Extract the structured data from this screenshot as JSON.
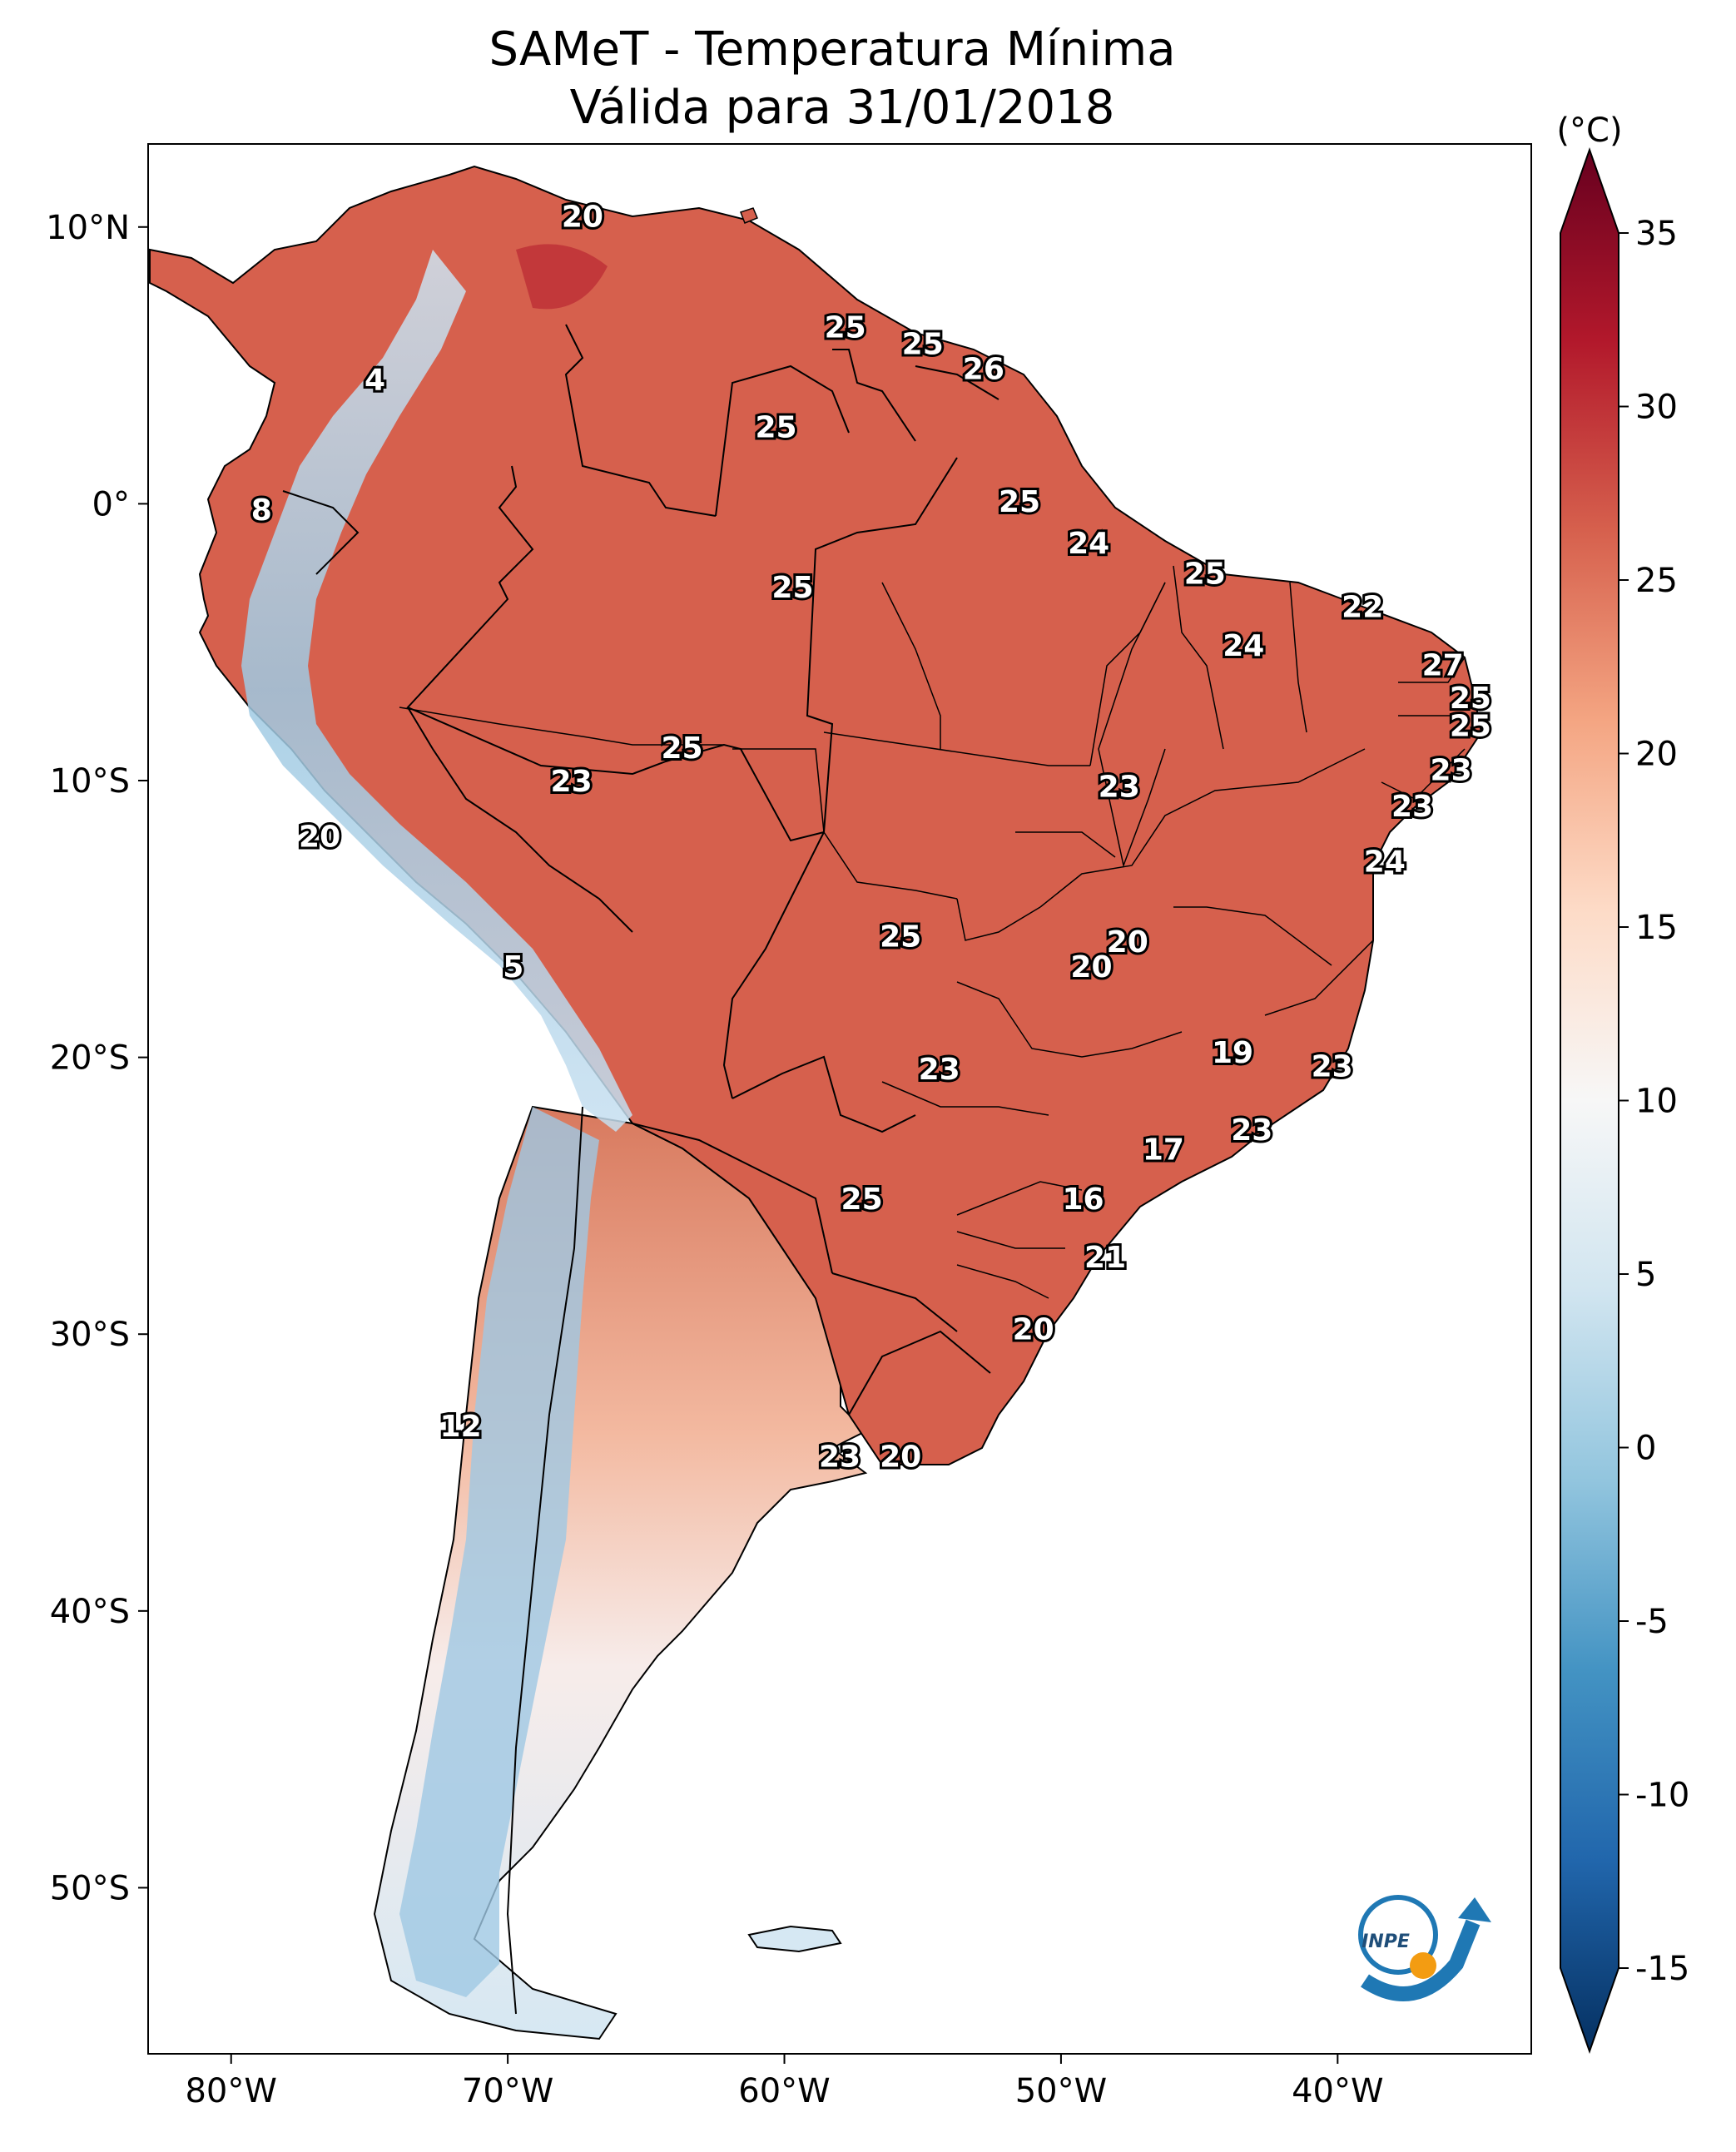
{
  "title_line1": "SAMeT - Temperatura Mínima",
  "title_line2": "Válida para 31/01/2018",
  "unit": "(°C)",
  "lat_ticks": [
    "10°N",
    "0°",
    "10°S",
    "20°S",
    "30°S",
    "40°S",
    "50°S"
  ],
  "lon_ticks": [
    "80°W",
    "70°W",
    "60°W",
    "50°W",
    "40°W"
  ],
  "colorbar": {
    "ticks": [
      "35",
      "30",
      "25",
      "20",
      "15",
      "10",
      "5",
      "0",
      "-5",
      "-10",
      "-15"
    ],
    "min": -15,
    "max": 35,
    "colors": [
      "#053061",
      "#2166ac",
      "#4393c3",
      "#92c5de",
      "#d1e5f0",
      "#f7f7f7",
      "#fddbc7",
      "#f4a582",
      "#d6604d",
      "#b2182b",
      "#67001f"
    ]
  },
  "logo_text": "INPE",
  "map_labels": [
    {
      "text": "20",
      "lon": -67.3,
      "lat": 10.4
    },
    {
      "text": "25",
      "lon": -57.8,
      "lat": 6.4
    },
    {
      "text": "25",
      "lon": -55.0,
      "lat": 5.8
    },
    {
      "text": "26",
      "lon": -52.8,
      "lat": 4.9
    },
    {
      "text": "4",
      "lon": -74.8,
      "lat": 4.5
    },
    {
      "text": "25",
      "lon": -60.3,
      "lat": 2.8
    },
    {
      "text": "25",
      "lon": -51.5,
      "lat": 0.1
    },
    {
      "text": "8",
      "lon": -78.9,
      "lat": -0.2
    },
    {
      "text": "24",
      "lon": -49.0,
      "lat": -1.4
    },
    {
      "text": "25",
      "lon": -44.8,
      "lat": -2.5
    },
    {
      "text": "25",
      "lon": -59.7,
      "lat": -3.0
    },
    {
      "text": "22",
      "lon": -39.1,
      "lat": -3.7
    },
    {
      "text": "24",
      "lon": -43.4,
      "lat": -5.1
    },
    {
      "text": "27",
      "lon": -36.2,
      "lat": -5.8
    },
    {
      "text": "25",
      "lon": -35.2,
      "lat": -7.0
    },
    {
      "text": "25",
      "lon": -35.2,
      "lat": -8.0
    },
    {
      "text": "25",
      "lon": -63.7,
      "lat": -8.8
    },
    {
      "text": "23",
      "lon": -35.9,
      "lat": -9.6
    },
    {
      "text": "23",
      "lon": -67.7,
      "lat": -10.0
    },
    {
      "text": "23",
      "lon": -47.9,
      "lat": -10.2
    },
    {
      "text": "23",
      "lon": -37.3,
      "lat": -10.9
    },
    {
      "text": "20",
      "lon": -76.8,
      "lat": -12.0
    },
    {
      "text": "24",
      "lon": -38.3,
      "lat": -12.9
    },
    {
      "text": "25",
      "lon": -55.8,
      "lat": -15.6
    },
    {
      "text": "20",
      "lon": -47.6,
      "lat": -15.8
    },
    {
      "text": "20",
      "lon": -48.9,
      "lat": -16.7
    },
    {
      "text": "5",
      "lon": -69.8,
      "lat": -16.7
    },
    {
      "text": "19",
      "lon": -43.8,
      "lat": -19.8
    },
    {
      "text": "23",
      "lon": -54.4,
      "lat": -20.4
    },
    {
      "text": "23",
      "lon": -40.2,
      "lat": -20.3
    },
    {
      "text": "23",
      "lon": -43.1,
      "lat": -22.6
    },
    {
      "text": "17",
      "lon": -46.3,
      "lat": -23.3
    },
    {
      "text": "25",
      "lon": -57.2,
      "lat": -25.1
    },
    {
      "text": "16",
      "lon": -49.2,
      "lat": -25.1
    },
    {
      "text": "21",
      "lon": -48.4,
      "lat": -27.2
    },
    {
      "text": "20",
      "lon": -51.0,
      "lat": -29.8
    },
    {
      "text": "12",
      "lon": -71.7,
      "lat": -33.3
    },
    {
      "text": "23",
      "lon": -58.0,
      "lat": -34.4
    },
    {
      "text": "20",
      "lon": -55.8,
      "lat": -34.4
    }
  ]
}
